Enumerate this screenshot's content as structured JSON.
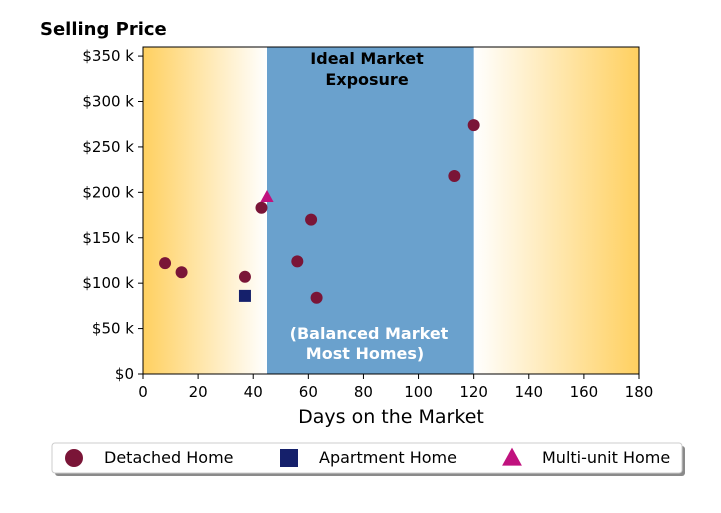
{
  "chart_data": {
    "type": "scatter",
    "ylabel": "Selling Price",
    "xlabel": "Days on the Market",
    "xlim": [
      0,
      180
    ],
    "ylim": [
      0,
      360000
    ],
    "x_ticks": [
      0,
      20,
      40,
      60,
      80,
      100,
      120,
      140,
      160,
      180
    ],
    "x_tick_labels": [
      "0",
      "20",
      "40",
      "60",
      "80",
      "100",
      "120",
      "140",
      "160",
      "180"
    ],
    "y_ticks": [
      0,
      50000,
      100000,
      150000,
      200000,
      250000,
      300000,
      350000
    ],
    "y_tick_labels": [
      "$0",
      "$50 k",
      "$100 k",
      "$150 k",
      "$200 k",
      "$250 k",
      "$300 k",
      "$350 k"
    ],
    "ideal_range": {
      "x_start": 45,
      "x_end": 120,
      "color": "#6aa1cd"
    },
    "gradient_color": "#ffd060",
    "annotations": {
      "top": [
        "Ideal Market",
        "Exposure"
      ],
      "bottom": [
        "(Balanced Market",
        "Most Homes)"
      ]
    },
    "series": [
      {
        "name": "Detached Home",
        "marker": "circle",
        "color": "#7a1537",
        "points": [
          {
            "x": 8,
            "y": 122000
          },
          {
            "x": 14,
            "y": 112000
          },
          {
            "x": 37,
            "y": 107000
          },
          {
            "x": 43,
            "y": 183000
          },
          {
            "x": 56,
            "y": 124000
          },
          {
            "x": 61,
            "y": 170000
          },
          {
            "x": 63,
            "y": 84000
          },
          {
            "x": 113,
            "y": 218000
          },
          {
            "x": 120,
            "y": 274000
          }
        ]
      },
      {
        "name": "Apartment Home",
        "marker": "square",
        "color": "#15206b",
        "points": [
          {
            "x": 37,
            "y": 86000
          }
        ]
      },
      {
        "name": "Multi-unit Home",
        "marker": "triangle",
        "color": "#c0127e",
        "points": [
          {
            "x": 45,
            "y": 195000
          }
        ]
      }
    ],
    "legend": {
      "placement": "bottom"
    }
  }
}
